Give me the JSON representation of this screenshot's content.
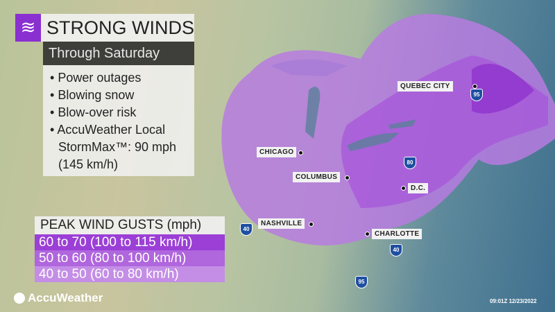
{
  "header": {
    "title": "STRONG WINDS",
    "subtitle": "Through Saturday",
    "icon": "wind-icon"
  },
  "impacts": [
    "Power outages",
    "Blowing snow",
    "Blow-over risk",
    "AccuWeather Local StormMax™: 90 mph (145 km/h)"
  ],
  "legend": {
    "title": "PEAK WIND GUSTS (mph)",
    "items": [
      {
        "label": "60 to 70 (100 to 115 km/h)",
        "color": "#9b3fd6"
      },
      {
        "label": "50 to 60 (80 to 100 km/h)",
        "color": "#b066dd"
      },
      {
        "label": "40 to 50 (60 to 80 km/h)",
        "color": "#c48ee6"
      }
    ]
  },
  "cities": [
    "QUEBEC CITY",
    "CHICAGO",
    "COLUMBUS",
    "D.C.",
    "NASHVILLE",
    "CHARLOTTE"
  ],
  "interstates": [
    "95",
    "80",
    "40",
    "40",
    "95"
  ],
  "brand": "AccuWeather",
  "timestamp": "09:01Z 12/23/2022"
}
